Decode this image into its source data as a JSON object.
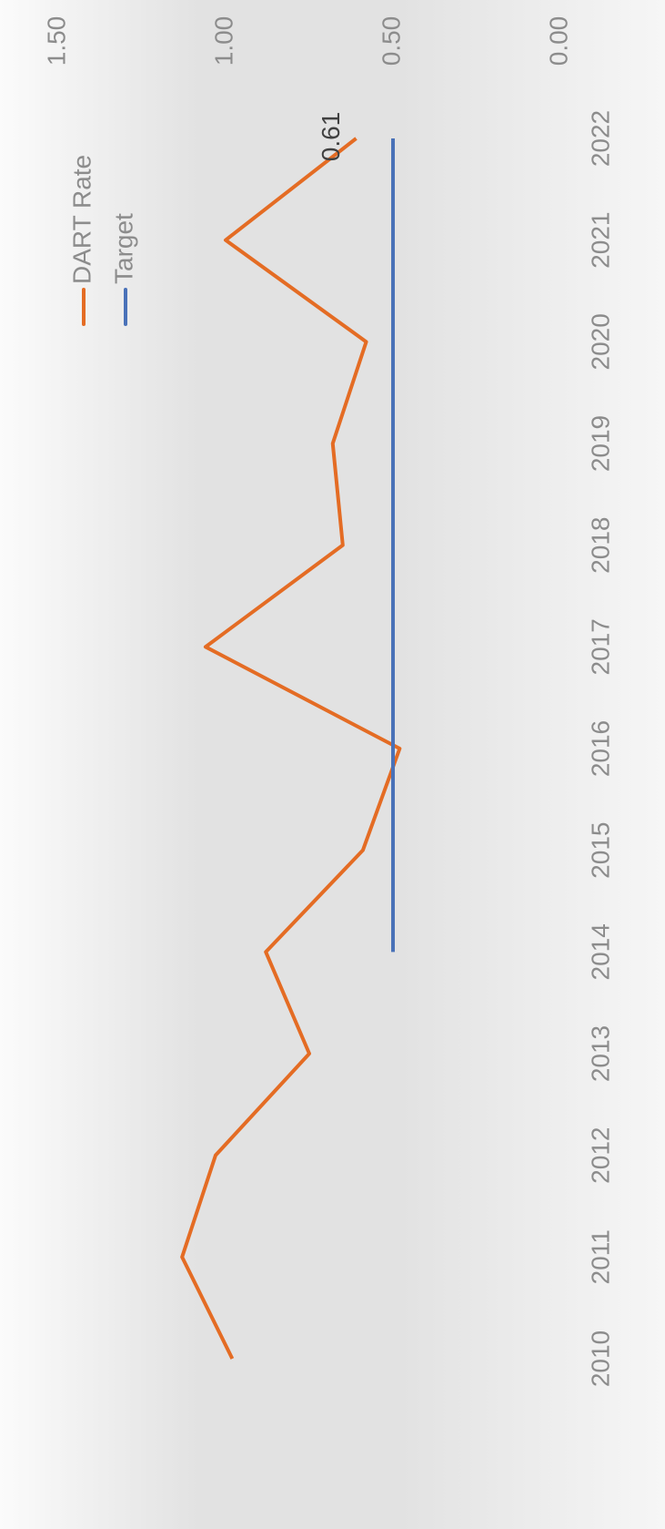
{
  "chart_data": {
    "type": "line",
    "categories": [
      "2010",
      "2011",
      "2012",
      "2013",
      "2014",
      "2015",
      "2016",
      "2017",
      "2018",
      "2019",
      "2020",
      "2021",
      "2022"
    ],
    "series": [
      {
        "name": "DART Rate",
        "color": "#e46c24",
        "values": [
          0.98,
          1.13,
          1.03,
          0.75,
          0.88,
          0.59,
          0.48,
          1.06,
          0.65,
          0.68,
          0.58,
          1.0,
          0.61
        ]
      },
      {
        "name": "Target",
        "color": "#4a72b8",
        "values": [
          null,
          null,
          null,
          null,
          0.5,
          0.5,
          0.5,
          0.5,
          0.5,
          0.5,
          0.5,
          0.5,
          0.5
        ]
      }
    ],
    "data_label_point": [
      0,
      12
    ],
    "ylim": [
      0,
      1.5
    ],
    "yticks": [
      {
        "value": 0,
        "label": "0.00"
      },
      {
        "value": 0.5,
        "label": "0.50"
      },
      {
        "value": 1,
        "label": "1.00"
      },
      {
        "value": 1.5,
        "label": "1.50"
      }
    ],
    "grid": false
  }
}
